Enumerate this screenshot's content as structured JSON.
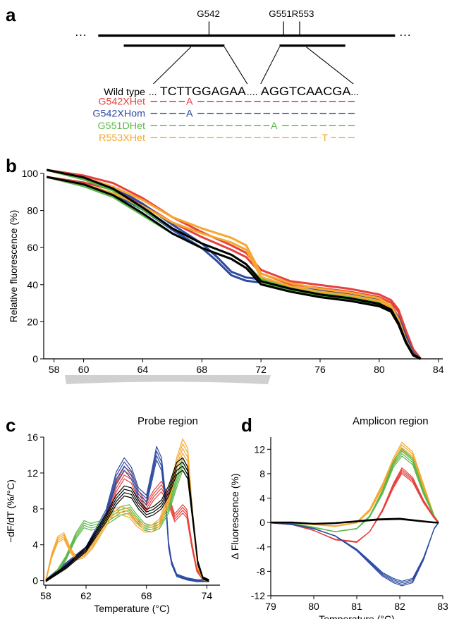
{
  "panels": {
    "a": "a",
    "b": "b",
    "c": "c",
    "d": "d"
  },
  "colors": {
    "red": "#e8403c",
    "blue": "#2d4ba0",
    "green": "#5bb84a",
    "orange": "#f5a830",
    "black": "#000000"
  },
  "panel_a": {
    "sites": [
      "G542",
      "G551",
      "R553"
    ],
    "wild_type_label": "Wild type",
    "wild_type_seq_left": "TCTTGGAGAA",
    "wild_type_seq_right": "AGGTCAACGA",
    "mutants": [
      {
        "label": "G542XHet",
        "base": "A",
        "color": "#e8403c"
      },
      {
        "label": "G542XHom",
        "base": "A",
        "color": "#2d4ba0"
      },
      {
        "label": "G551DHet",
        "base": "A",
        "color": "#5bb84a"
      },
      {
        "label": "R553XHet",
        "base": "T",
        "color": "#f5a830"
      }
    ]
  },
  "region_labels": {
    "probe": "Probe region",
    "amplicon": "Amplicon region"
  },
  "chart_data": [
    {
      "panel": "b",
      "type": "line",
      "ylabel": "Relative fluorescence (%)",
      "xlabel": "",
      "xlim": [
        57.3,
        84.3
      ],
      "ylim": [
        0,
        100
      ],
      "xticks": [
        58,
        60,
        64,
        68,
        72,
        76,
        80,
        84
      ],
      "yticks": [
        0,
        20,
        40,
        60,
        80,
        100
      ],
      "series": [
        {
          "color": "#e8403c",
          "x": [
            57.5,
            60,
            62,
            64,
            66,
            68,
            70,
            71,
            72,
            74,
            76,
            78,
            80,
            80.8,
            81.3,
            81.8,
            82.3,
            82.8
          ],
          "y": [
            100,
            97,
            93,
            85,
            75,
            67,
            60,
            56,
            47,
            41,
            39,
            37,
            34,
            31,
            26,
            15,
            5,
            0
          ]
        },
        {
          "color": "#2d4ba0",
          "x": [
            57.5,
            60,
            62,
            64,
            66,
            68,
            69,
            70,
            71,
            72,
            74,
            76,
            78,
            80,
            80.8,
            81.3,
            81.8,
            82.3,
            82.8
          ],
          "y": [
            100,
            96,
            91,
            82,
            71,
            61,
            54,
            46,
            43,
            42,
            38,
            36,
            34,
            31,
            28,
            22,
            12,
            3,
            0
          ]
        },
        {
          "color": "#5bb84a",
          "x": [
            57.5,
            60,
            62,
            64,
            66,
            68,
            70,
            71,
            72,
            74,
            76,
            78,
            80,
            80.8,
            81.3,
            81.8,
            82.3,
            82.8
          ],
          "y": [
            100,
            95,
            89,
            79,
            69,
            61,
            55,
            50,
            42,
            38,
            35,
            33,
            30,
            27,
            20,
            10,
            2,
            0
          ]
        },
        {
          "color": "#f5a830",
          "x": [
            57.5,
            60,
            62,
            64,
            66,
            68,
            70,
            71,
            72,
            74,
            76,
            78,
            80,
            80.8,
            81.3,
            81.8,
            82.3,
            82.8
          ],
          "y": [
            100,
            96,
            91,
            84,
            75,
            69,
            64,
            60,
            45,
            40,
            37,
            35,
            32,
            28,
            21,
            10,
            2,
            0
          ]
        },
        {
          "color": "#000000",
          "x": [
            57.5,
            60,
            62,
            64,
            66,
            68,
            70,
            71,
            72,
            74,
            76,
            78,
            80,
            80.8,
            81.3,
            81.8,
            82.3,
            82.8
          ],
          "y": [
            100,
            96,
            90,
            80,
            69,
            61,
            55,
            50,
            41,
            37,
            34,
            32,
            29,
            26,
            19,
            9,
            2,
            0
          ]
        }
      ]
    },
    {
      "panel": "c",
      "type": "line",
      "xlabel": "Temperature (°C)",
      "ylabel": "−dF/dT (%/°C)",
      "xlim": [
        57.8,
        75.3
      ],
      "ylim": [
        -0.5,
        16
      ],
      "xticks": [
        58,
        62,
        68,
        74
      ],
      "yticks": [
        0,
        4,
        8,
        12,
        16
      ],
      "series": [
        {
          "color": "#e8403c",
          "x": [
            58,
            60,
            62,
            64,
            65,
            65.8,
            66.5,
            67.2,
            68,
            68.7,
            69.5,
            70.2,
            70.8,
            71.2,
            71.6,
            72,
            72.5,
            73,
            73.6,
            74.2
          ],
          "y": [
            0,
            1.8,
            3.5,
            7,
            10.5,
            12,
            11.5,
            9.5,
            8.2,
            9.5,
            10.5,
            9,
            7,
            7.5,
            8,
            7.5,
            4,
            1.2,
            0.2,
            0
          ]
        },
        {
          "color": "#2d4ba0",
          "x": [
            58,
            60,
            62,
            64,
            65,
            65.8,
            66.5,
            67.2,
            68,
            68.5,
            69,
            69.5,
            69.9,
            70.2,
            70.5,
            71,
            72,
            73,
            74.2
          ],
          "y": [
            0,
            1.8,
            3.5,
            7.5,
            11.5,
            13,
            12,
            9.8,
            9,
            11.5,
            14.2,
            13,
            9,
            4,
            2,
            0.6,
            0.2,
            0,
            0
          ]
        },
        {
          "color": "#5bb84a",
          "x": [
            58,
            59,
            60,
            61,
            61.8,
            62.5,
            63.5,
            64.5,
            65.5,
            66.3,
            67,
            67.8,
            68.5,
            69.3,
            70.2,
            71,
            71.6,
            72.1,
            72.6,
            73.1,
            73.6,
            74.2
          ],
          "y": [
            0,
            0.8,
            2.5,
            5,
            6.3,
            6,
            6.3,
            7,
            7.8,
            8,
            7,
            6,
            5.8,
            6.2,
            8,
            11,
            13,
            12,
            7,
            2,
            0.3,
            0
          ]
        },
        {
          "color": "#f5a830",
          "x": [
            58,
            58.6,
            59.2,
            59.8,
            60.4,
            61,
            61.8,
            62.6,
            63.5,
            64.5,
            65.5,
            66.3,
            67,
            67.8,
            68.5,
            69.3,
            70.2,
            71,
            71.6,
            72.1,
            72.6,
            73.1,
            73.6,
            74.2
          ],
          "y": [
            0,
            2.8,
            4.6,
            5,
            3.5,
            2.5,
            2.8,
            3.8,
            5.5,
            7.5,
            7.8,
            7.5,
            6.5,
            5.8,
            5.8,
            6.5,
            9,
            13,
            15,
            14,
            7,
            1.5,
            0.2,
            0
          ]
        },
        {
          "color": "#000000",
          "x": [
            58,
            60,
            62,
            64,
            65,
            65.8,
            66.5,
            67.2,
            68,
            68.7,
            69.5,
            70.2,
            71,
            71.6,
            72.1,
            72.6,
            73.1,
            73.6,
            74.2
          ],
          "y": [
            0,
            1.5,
            3.5,
            7,
            9,
            10,
            9.8,
            8.5,
            7.5,
            7.8,
            8.5,
            10,
            12.5,
            13,
            12,
            7,
            2,
            0.3,
            0
          ]
        }
      ]
    },
    {
      "panel": "d",
      "type": "line",
      "xlabel": "Temperature (°C)",
      "ylabel": "Δ Fluorescence (%)",
      "xlim": [
        79,
        83
      ],
      "ylim": [
        -12,
        14
      ],
      "xticks": [
        79,
        80,
        81,
        82,
        83
      ],
      "yticks": [
        -12,
        -8,
        -4,
        0,
        4,
        8,
        12
      ],
      "series": [
        {
          "color": "#f5a830",
          "x": [
            79,
            79.5,
            80,
            80.5,
            81,
            81.3,
            81.6,
            81.85,
            82.05,
            82.3,
            82.55,
            82.8,
            82.9
          ],
          "y": [
            0,
            0,
            -0.3,
            -0.6,
            0,
            2,
            6,
            10,
            12.5,
            11,
            6,
            1,
            0
          ]
        },
        {
          "color": "#5bb84a",
          "x": [
            79,
            79.5,
            80,
            80.5,
            81,
            81.3,
            81.6,
            81.85,
            82.05,
            82.3,
            82.55,
            82.8,
            82.9
          ],
          "y": [
            0,
            -0.2,
            -0.8,
            -1.5,
            -1,
            1,
            5,
            9.5,
            11.5,
            10,
            5,
            1,
            0
          ]
        },
        {
          "color": "#e8403c",
          "x": [
            79,
            79.5,
            80,
            80.5,
            81,
            81.3,
            81.6,
            81.85,
            82.05,
            82.3,
            82.55,
            82.8,
            82.9
          ],
          "y": [
            0,
            -0.3,
            -1.3,
            -2.8,
            -3.2,
            -1.5,
            2,
            6,
            8.5,
            7,
            3.5,
            0.8,
            0
          ]
        },
        {
          "color": "#2d4ba0",
          "x": [
            79,
            79.5,
            80,
            80.5,
            81,
            81.3,
            81.6,
            81.85,
            82.05,
            82.3,
            82.55,
            82.8,
            82.9
          ],
          "y": [
            0,
            -0.3,
            -1,
            -2.2,
            -4.5,
            -6.5,
            -8.5,
            -9.5,
            -10,
            -9.5,
            -6,
            -1,
            0
          ]
        },
        {
          "color": "#000000",
          "x": [
            79,
            79.5,
            80,
            80.5,
            81,
            81.5,
            82,
            82.4,
            82.8,
            82.9
          ],
          "y": [
            0,
            0,
            -0.2,
            -0.1,
            0.2,
            0.5,
            0.6,
            0.3,
            0,
            0
          ]
        }
      ]
    }
  ]
}
